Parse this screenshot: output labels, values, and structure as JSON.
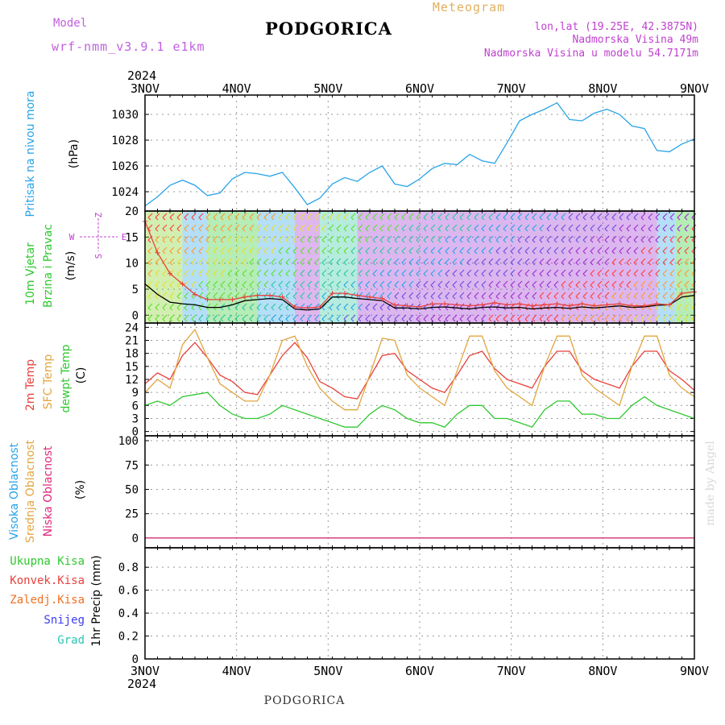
{
  "header": {
    "model_label": "Model",
    "model_name": "wrf-nmm_v3.9.1 e1km",
    "title": "PODGORICA",
    "subtitle": "Meteogram",
    "coords": "lon,lat (19.25E, 42.3875N)",
    "altitude": "Nadmorska Visina 49m",
    "model_altitude": "Nadmorska Visina u modelu 54.7171m",
    "footer": "PODGORICA",
    "credit": "made by Angel"
  },
  "time_axis": {
    "year": "2024",
    "ticks": [
      "3NOV",
      "4NOV",
      "5NOV",
      "6NOV",
      "7NOV",
      "8NOV",
      "9NOV"
    ]
  },
  "compass": {
    "n": "Z",
    "s": "S",
    "w": "W",
    "e": "E"
  },
  "colors": {
    "pressure": "#29a3e8",
    "temp": "#e8413c",
    "sfc_temp": "#e0a640",
    "dewpoint": "#2ec82e",
    "high_cloud": "#29a3e8",
    "mid_cloud": "#e0a640",
    "low_cloud": "#e0287a",
    "total_precip": "#2ec82e",
    "conv_precip": "#e8413c",
    "freezing": "#f07020",
    "snow": "#3c3cf0",
    "hail": "#28c8b4",
    "wind_speed": "#000000",
    "wind_gust": "#e8413c",
    "grid": "#9a9a9a"
  },
  "chart_data": [
    {
      "type": "line",
      "ylabel_left": "Pritisak na nivou mora",
      "ylabel": "(hPa)",
      "yticks": [
        "1024",
        "1026",
        "1028",
        "1030"
      ],
      "ylim": [
        1022.5,
        1031.5
      ],
      "x_start": "2024-11-03 00:00",
      "x_step_hours": 3,
      "series": [
        {
          "color": "pressure",
          "values": [
            1022.9,
            1023.6,
            1024.5,
            1024.9,
            1024.5,
            1023.7,
            1023.9,
            1025.0,
            1025.5,
            1025.4,
            1025.2,
            1025.5,
            1024.3,
            1023.0,
            1023.5,
            1024.6,
            1025.1,
            1024.8,
            1025.5,
            1026.0,
            1024.6,
            1024.4,
            1025.0,
            1025.8,
            1026.2,
            1026.1,
            1026.9,
            1026.4,
            1026.2,
            1027.8,
            1029.5,
            1030.0,
            1030.4,
            1030.9,
            1029.6,
            1029.5,
            1030.1,
            1030.4,
            1030.0,
            1029.1,
            1028.9,
            1027.2,
            1027.1,
            1027.7,
            1028.1
          ]
        }
      ]
    },
    {
      "type": "line",
      "ylabel_left": [
        "10m Vjetar",
        "Brzina i Pravac"
      ],
      "ylabel": "(m/s)",
      "yticks": [
        "0",
        "5",
        "10",
        "15",
        "20"
      ],
      "ylim": [
        -1.5,
        20
      ],
      "x_start": "2024-11-03 00:00",
      "x_step_hours": 3,
      "series": [
        {
          "color": "wind_speed",
          "values": [
            6,
            4,
            2.5,
            2.2,
            2,
            1.5,
            1.5,
            2,
            2.8,
            3,
            3.2,
            3,
            1.2,
            1.0,
            1.2,
            3.5,
            3.5,
            3.2,
            3,
            2.8,
            1.4,
            1.4,
            1.2,
            1.5,
            1.6,
            1.4,
            1.2,
            1.5,
            1.6,
            1.4,
            1.5,
            1.2,
            1.4,
            1.5,
            1.3,
            1.6,
            1.4,
            1.6,
            1.8,
            1.5,
            1.6,
            1.9,
            2.0,
            3.5,
            3.8
          ]
        },
        {
          "color": "wind_gust",
          "values": [
            18,
            12,
            8,
            6,
            4,
            3,
            3,
            3,
            3.5,
            3.8,
            3.8,
            3.5,
            1.6,
            1.4,
            1.6,
            4.2,
            4.2,
            3.8,
            3.5,
            3.2,
            2.0,
            1.8,
            1.6,
            2.2,
            2.2,
            2.0,
            1.8,
            2.0,
            2.4,
            2.0,
            2.2,
            1.8,
            2.0,
            2.2,
            1.8,
            2.2,
            1.8,
            2.0,
            2.2,
            1.8,
            1.8,
            2.2,
            2.0,
            4.2,
            4.5
          ]
        }
      ]
    },
    {
      "type": "line",
      "ylabel_left": [
        "2m Temp",
        "SFC Temp",
        "dewpt Temp"
      ],
      "ylabel": "(C)",
      "yticks": [
        "0",
        "3",
        "6",
        "9",
        "12",
        "15",
        "18",
        "21",
        "24"
      ],
      "ylim": [
        -1,
        25
      ],
      "x_start": "2024-11-03 00:00",
      "x_step_hours": 3,
      "series": [
        {
          "color": "temp",
          "values": [
            11,
            13.5,
            12,
            17.5,
            20.5,
            17,
            13,
            11.5,
            9,
            8.5,
            13,
            17.5,
            20.5,
            17,
            11.5,
            10,
            8,
            7.5,
            12.5,
            17.5,
            18,
            14,
            12,
            10,
            9,
            13,
            17.5,
            18.5,
            14.5,
            12,
            11,
            10,
            15,
            18.5,
            18.5,
            14,
            12,
            11,
            10,
            15,
            18.5,
            18.5,
            14,
            12,
            9.5
          ]
        },
        {
          "color": "sfc_temp",
          "values": [
            9,
            12,
            10,
            20,
            23.5,
            17,
            11,
            9,
            7,
            7,
            13,
            21,
            22,
            15,
            10,
            7,
            5,
            5,
            13,
            21.5,
            21,
            13,
            10,
            8,
            6,
            14,
            22,
            22,
            14,
            10,
            8,
            6,
            15,
            22,
            22,
            13,
            10,
            8,
            6,
            15,
            22,
            22,
            13,
            10,
            8
          ]
        },
        {
          "color": "dewpoint",
          "values": [
            6,
            7,
            6,
            8,
            8.5,
            9,
            6,
            4,
            3,
            3,
            4,
            6,
            5,
            4,
            3,
            2,
            1,
            1,
            4,
            6,
            5,
            3,
            2,
            2,
            1,
            4,
            6,
            6,
            3,
            3,
            2,
            1,
            5,
            7,
            7,
            4,
            4,
            3,
            3,
            6,
            8,
            6,
            5,
            4,
            3
          ]
        }
      ]
    },
    {
      "type": "line",
      "ylabel_left": [
        "Visoka Oblacnost",
        "Srednja Oblacnost",
        "Niska Oblacnost"
      ],
      "ylabel": "(%)",
      "yticks": [
        "0",
        "25",
        "50",
        "75",
        "100"
      ],
      "ylim": [
        -10,
        105
      ],
      "x_start": "2024-11-03 00:00",
      "x_step_hours": 3,
      "series": [
        {
          "color": "high_cloud",
          "values": [
            0,
            0,
            0,
            0,
            0,
            0,
            0,
            0,
            0,
            0,
            0,
            0,
            0,
            0,
            0,
            0,
            0,
            0,
            0,
            0,
            0,
            0,
            0,
            0,
            0,
            0,
            0,
            0,
            0,
            0,
            0,
            0,
            0,
            0,
            0,
            0,
            0,
            0,
            0,
            0,
            0,
            0,
            0,
            0,
            0
          ]
        },
        {
          "color": "mid_cloud",
          "values": [
            0,
            0,
            0,
            0,
            0,
            0,
            0,
            0,
            0,
            0,
            0,
            0,
            0,
            0,
            0,
            0,
            0,
            0,
            0,
            0,
            0,
            0,
            0,
            0,
            0,
            0,
            0,
            0,
            0,
            0,
            0,
            0,
            0,
            0,
            0,
            0,
            0,
            0,
            0,
            0,
            0,
            0,
            0,
            0,
            0
          ]
        },
        {
          "color": "low_cloud",
          "values": [
            0,
            0,
            0,
            0,
            0,
            0,
            0,
            0,
            0,
            0,
            0,
            0,
            0,
            0,
            0,
            0,
            0,
            0,
            0,
            0,
            0,
            0,
            0,
            0,
            0,
            0,
            0,
            0,
            0,
            0,
            0,
            0,
            0,
            0,
            0,
            0,
            0,
            0,
            0,
            0,
            0,
            0,
            0,
            0,
            0
          ]
        }
      ]
    },
    {
      "type": "bar",
      "ylabel_left": [
        "Ukupna Kisa",
        "Konvek.Kisa",
        "Zaledj.Kisa",
        "Snijeg",
        "Grad"
      ],
      "ylabel": "1hr Precip (mm)",
      "yticks": [
        "0",
        "0.2",
        "0.4",
        "0.6",
        "0.8"
      ],
      "ylim": [
        0,
        0.97
      ],
      "series": []
    }
  ]
}
